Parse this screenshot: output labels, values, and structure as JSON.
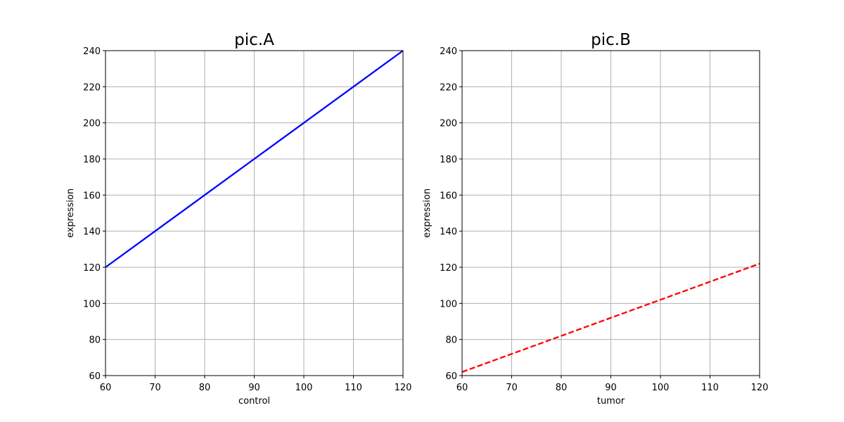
{
  "chart_data": [
    {
      "type": "line",
      "title": "pic.A",
      "xlabel": "control",
      "ylabel": "expression",
      "xlim": [
        60,
        120
      ],
      "ylim": [
        60,
        240
      ],
      "xticks": [
        60,
        70,
        80,
        90,
        100,
        110,
        120
      ],
      "yticks": [
        60,
        80,
        100,
        120,
        140,
        160,
        180,
        200,
        220,
        240
      ],
      "grid": true,
      "series": [
        {
          "x": [
            60,
            70,
            80,
            90,
            100,
            110,
            120
          ],
          "y": [
            120,
            140,
            160,
            180,
            200,
            220,
            240
          ],
          "color": "#0000ff",
          "linestyle": "solid"
        }
      ]
    },
    {
      "type": "line",
      "title": "pic.B",
      "xlabel": "tumor",
      "ylabel": "expression",
      "xlim": [
        60,
        120
      ],
      "ylim": [
        60,
        240
      ],
      "xticks": [
        60,
        70,
        80,
        90,
        100,
        110,
        120
      ],
      "yticks": [
        60,
        80,
        100,
        120,
        140,
        160,
        180,
        200,
        220,
        240
      ],
      "grid": true,
      "series": [
        {
          "x": [
            60,
            70,
            80,
            90,
            100,
            110,
            120
          ],
          "y": [
            62,
            72,
            82,
            92,
            102,
            112,
            122
          ],
          "color": "#ff0000",
          "linestyle": "dashed"
        }
      ]
    }
  ]
}
